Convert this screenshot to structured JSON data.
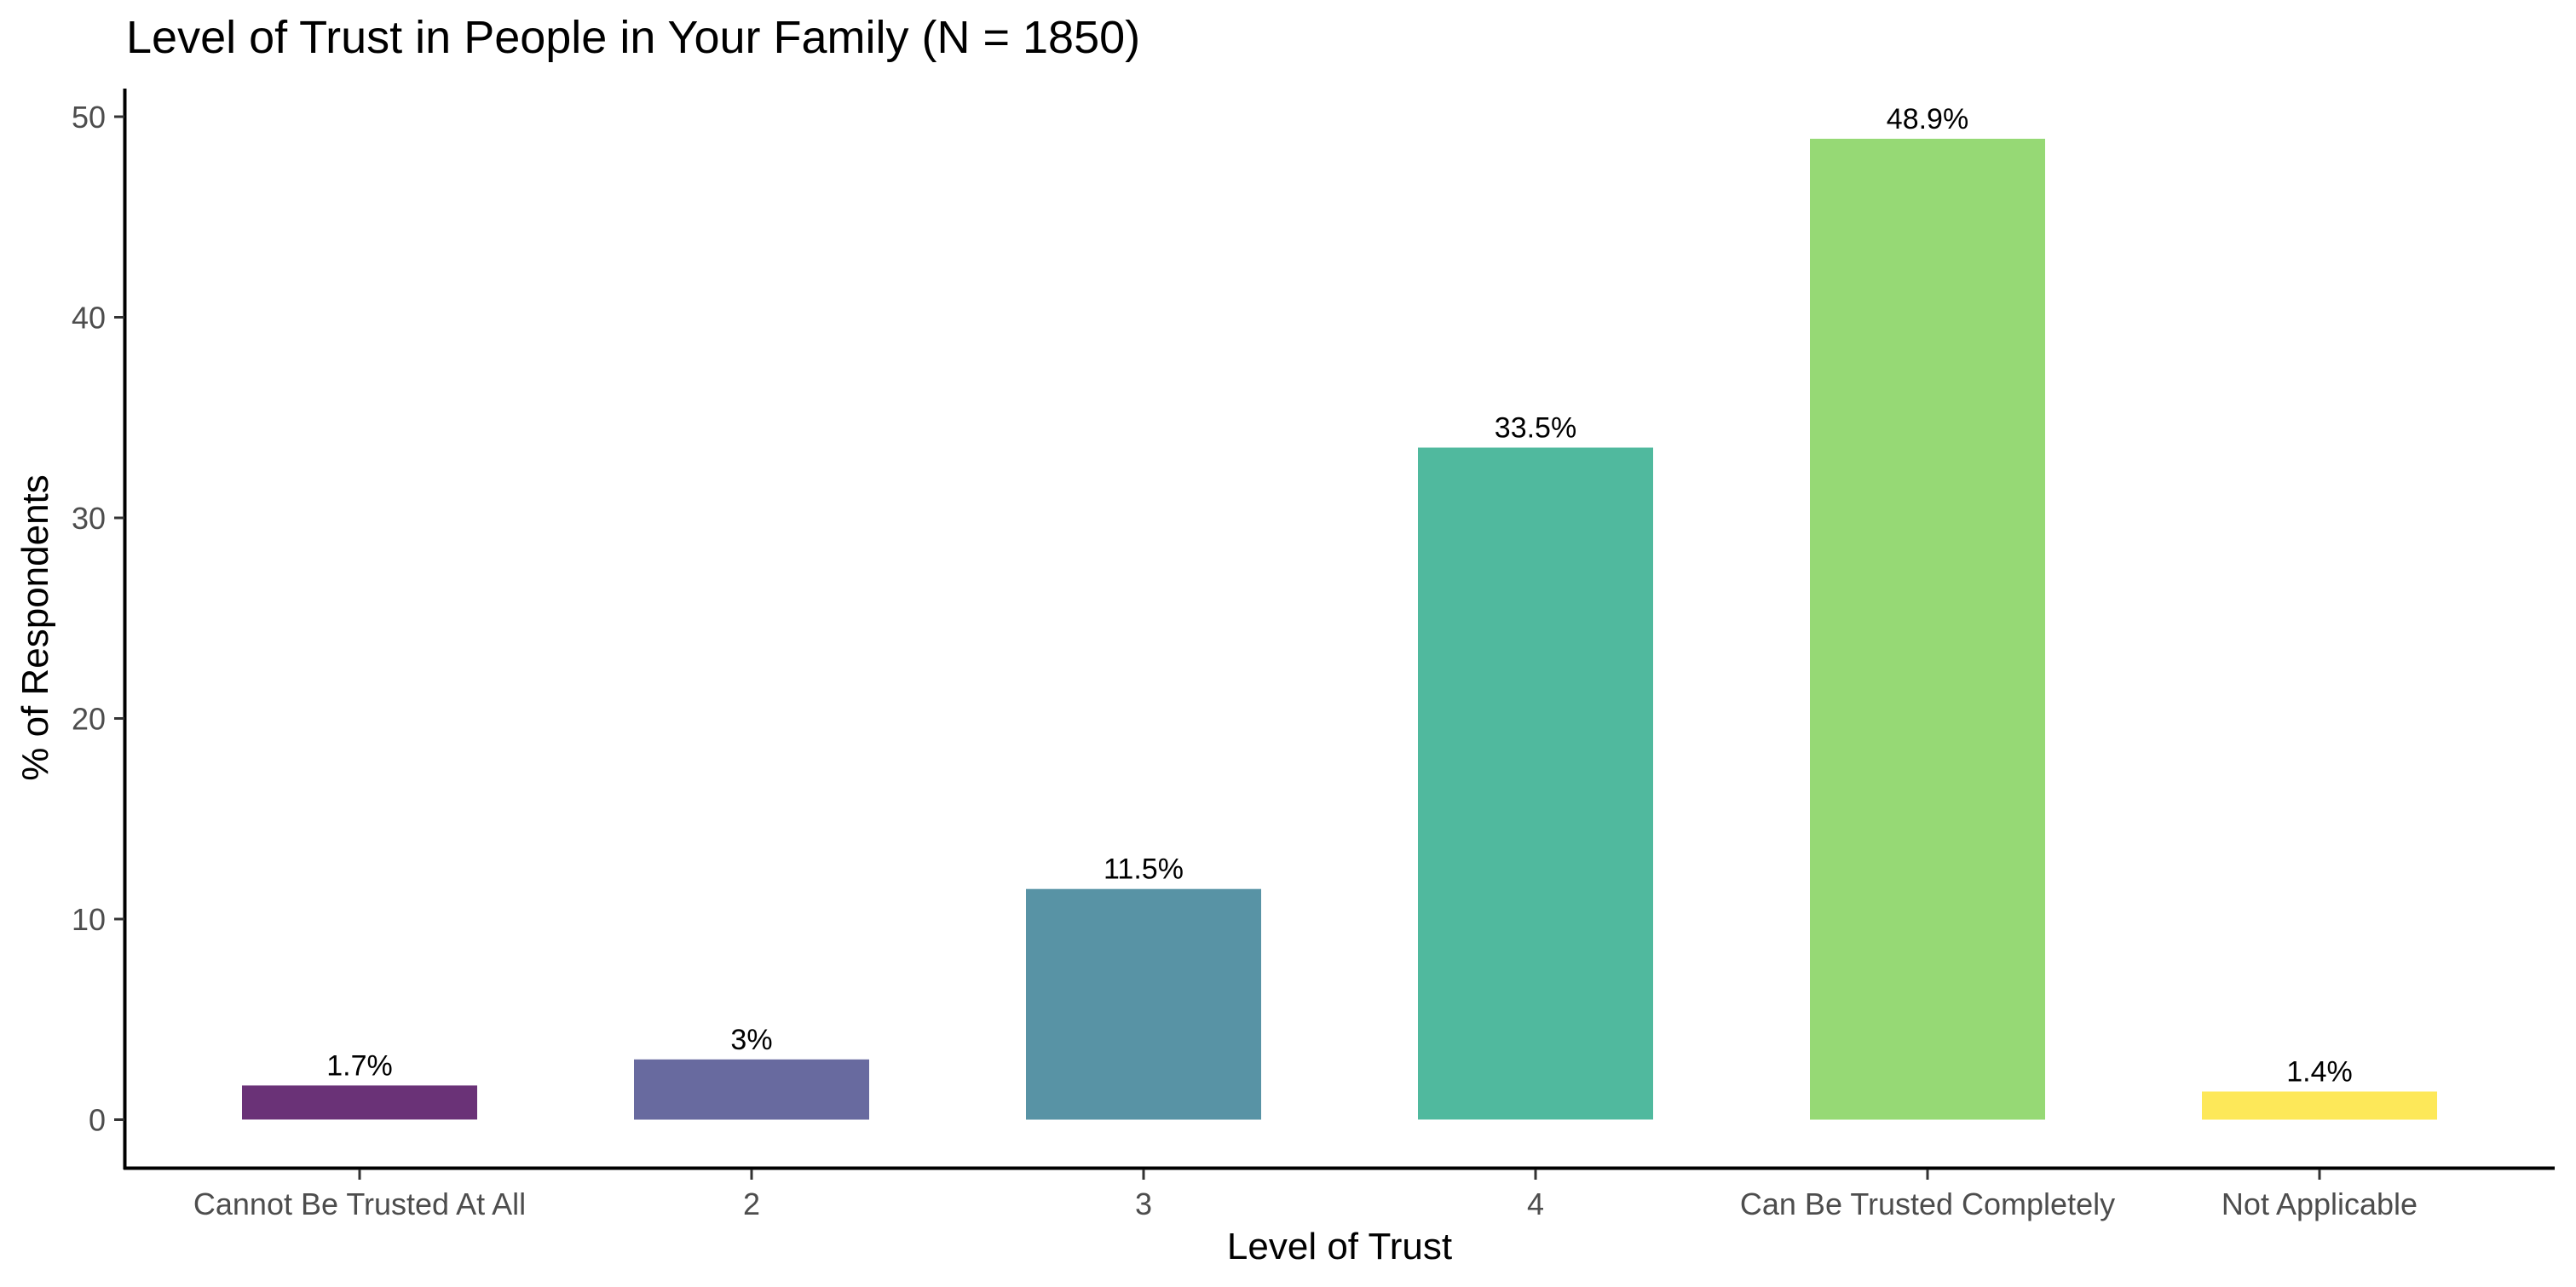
{
  "chart_data": {
    "type": "bar",
    "title": "Level of Trust in People in Your Family (N = 1850)",
    "xlabel": "Level of Trust",
    "ylabel": "% of Respondents",
    "categories": [
      "Cannot Be Trusted At All",
      "2",
      "3",
      "4",
      "Can Be Trusted Completely",
      "Not Applicable"
    ],
    "values": [
      1.7,
      3.0,
      11.5,
      33.5,
      48.9,
      1.4
    ],
    "value_labels": [
      "1.7%",
      "3%",
      "11.5%",
      "33.5%",
      "48.9%",
      "1.4%"
    ],
    "colors": [
      "#6a3277",
      "#686a9f",
      "#5893a5",
      "#50b99e",
      "#96d975",
      "#fde859"
    ],
    "y_ticks": [
      0,
      10,
      20,
      30,
      40,
      50
    ],
    "y_tick_labels": [
      "0",
      "10",
      "20",
      "30",
      "40",
      "50"
    ],
    "ylim": [
      -2.4,
      51.4
    ],
    "grid": false,
    "legend": "none"
  }
}
